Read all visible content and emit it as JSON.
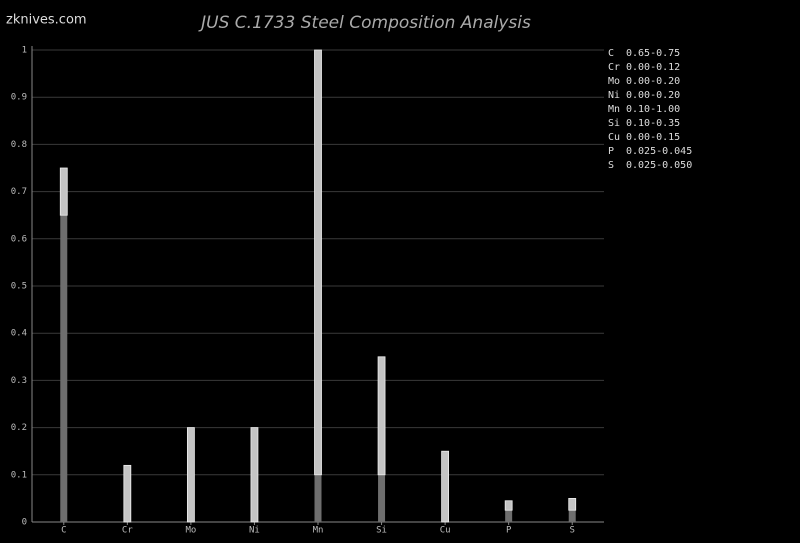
{
  "site": "zknives.com",
  "chart_data": {
    "type": "range_bar",
    "title": "JUS C.1733 Steel Composition Analysis",
    "categories": [
      "C",
      "Cr",
      "Mo",
      "Ni",
      "Mn",
      "Si",
      "Cu",
      "P",
      "S"
    ],
    "min_values": [
      0.65,
      0,
      0,
      0,
      0.1,
      0.1,
      0,
      0.025,
      0.025
    ],
    "max_values": [
      0.75,
      0.12,
      0.2,
      0.2,
      1.0,
      0.35,
      0.15,
      0.045,
      0.05
    ],
    "range_labels": [
      "0.65-0.75",
      "0.00-0.12",
      "0.00-0.20",
      "0.00-0.20",
      "0.10-1.00",
      "0.10-0.35",
      "0.00-0.15",
      "0.025-0.045",
      "0.025-0.050"
    ],
    "min_color": "#6e6e6e",
    "max_color": "#c4c4c4",
    "ylim": [
      0,
      1
    ],
    "yticks": [
      0,
      0.1,
      0.2,
      0.3,
      0.4,
      0.5,
      0.6,
      0.7,
      0.8,
      0.9,
      1
    ],
    "grid": true
  }
}
